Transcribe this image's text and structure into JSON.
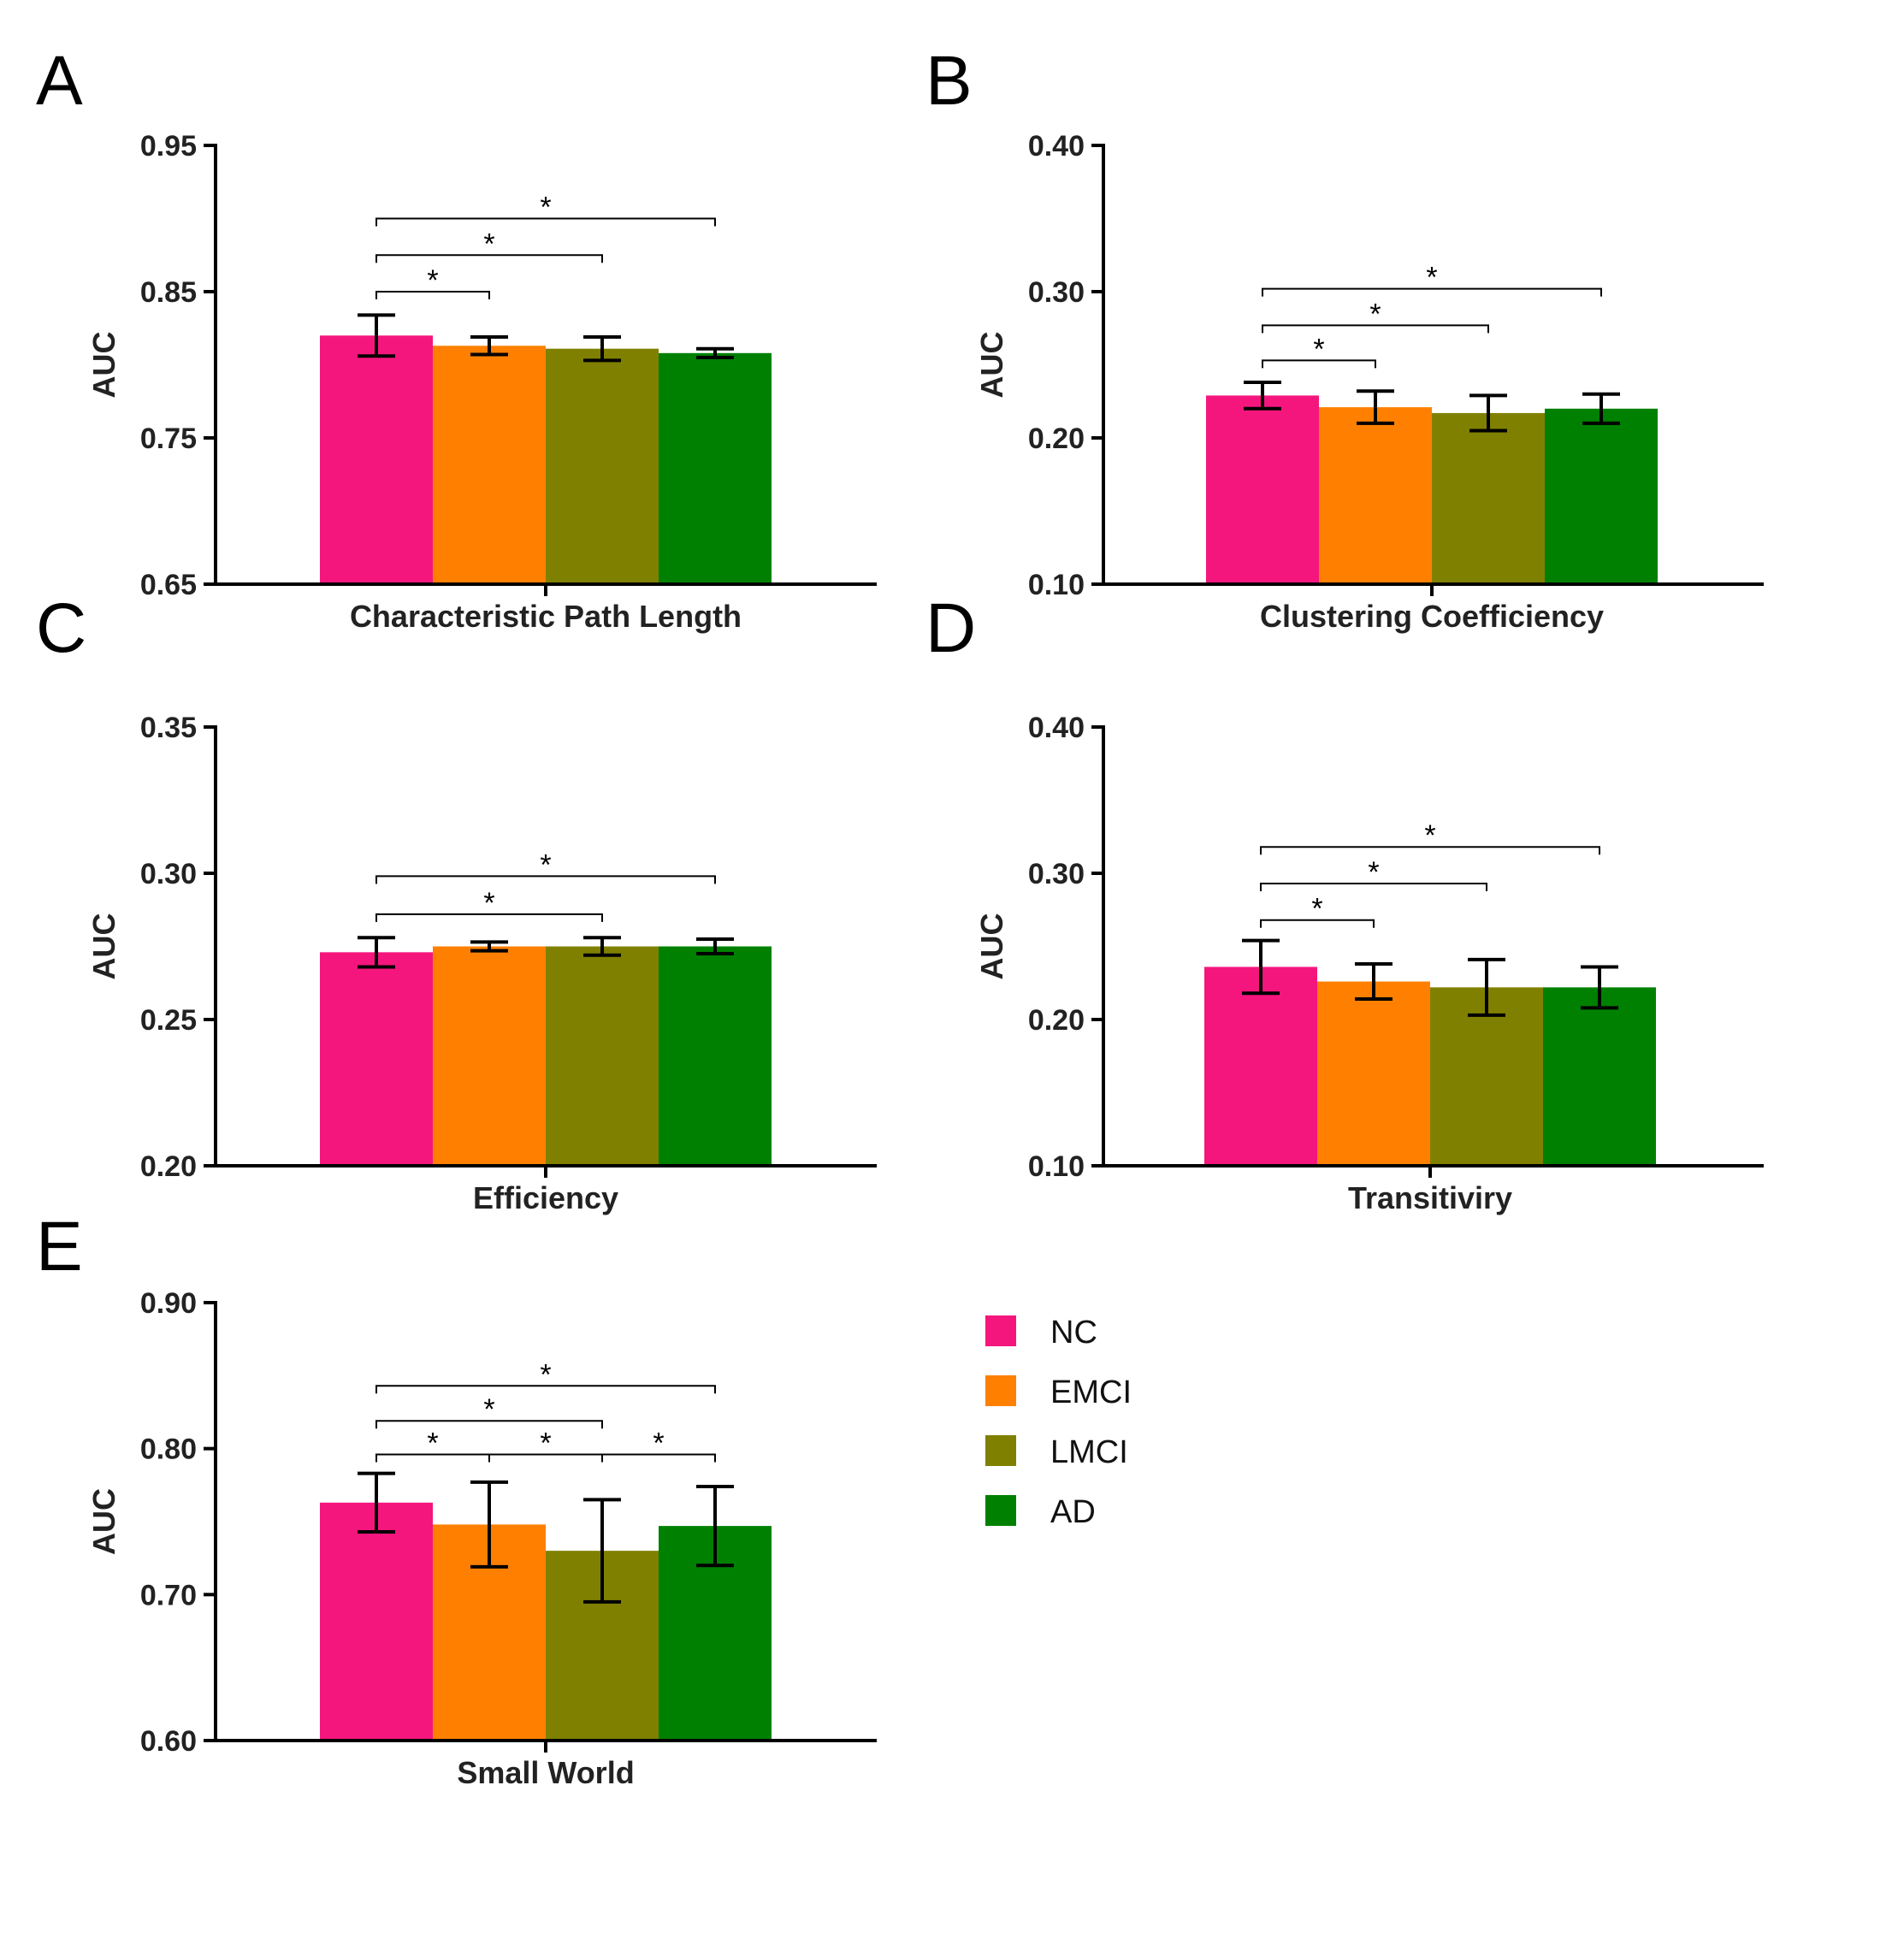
{
  "colors": {
    "NC": "#f5167d",
    "EMCI": "#ff8000",
    "LMCI": "#808000",
    "AD": "#008000"
  },
  "legend": {
    "items": [
      {
        "label": "NC",
        "color_key": "NC"
      },
      {
        "label": "EMCI",
        "color_key": "EMCI"
      },
      {
        "label": "LMCI",
        "color_key": "LMCI"
      },
      {
        "label": "AD",
        "color_key": "AD"
      }
    ]
  },
  "chart_data": [
    {
      "panel": "A",
      "type": "bar",
      "ylabel": "AUC",
      "xlabel": "Characteristic Path Length",
      "ylim": [
        0.65,
        0.95
      ],
      "yticks": [
        "0.65",
        "0.75",
        "0.85",
        "0.95"
      ],
      "groups": [
        "NC",
        "EMCI",
        "LMCI",
        "AD"
      ],
      "values": [
        0.82,
        0.813,
        0.811,
        0.808
      ],
      "errors": [
        0.014,
        0.006,
        0.008,
        0.003
      ],
      "significance": [
        {
          "from": 0,
          "to": 1,
          "label": "*",
          "level": 0.85
        },
        {
          "from": 0,
          "to": 2,
          "label": "*",
          "level": 0.875
        },
        {
          "from": 0,
          "to": 3,
          "label": "*",
          "level": 0.9
        }
      ]
    },
    {
      "panel": "B",
      "type": "bar",
      "ylabel": "AUC",
      "xlabel": "Clustering Coefficiency",
      "ylim": [
        0.1,
        0.4
      ],
      "yticks": [
        "0.10",
        "0.20",
        "0.30",
        "0.40"
      ],
      "groups": [
        "NC",
        "EMCI",
        "LMCI",
        "AD"
      ],
      "values": [
        0.229,
        0.221,
        0.217,
        0.22
      ],
      "errors": [
        0.009,
        0.011,
        0.012,
        0.01
      ],
      "significance": [
        {
          "from": 0,
          "to": 1,
          "label": "*",
          "level": 0.253
        },
        {
          "from": 0,
          "to": 2,
          "label": "*",
          "level": 0.277
        },
        {
          "from": 0,
          "to": 3,
          "label": "*",
          "level": 0.302
        }
      ]
    },
    {
      "panel": "C",
      "type": "bar",
      "ylabel": "AUC",
      "xlabel": "Efficiency",
      "ylim": [
        0.2,
        0.35
      ],
      "yticks": [
        "0.20",
        "0.25",
        "0.30",
        "0.35"
      ],
      "groups": [
        "NC",
        "EMCI",
        "LMCI",
        "AD"
      ],
      "values": [
        0.273,
        0.275,
        0.275,
        0.275
      ],
      "errors": [
        0.005,
        0.0015,
        0.003,
        0.0025
      ],
      "significance": [
        {
          "from": 0,
          "to": 2,
          "label": "*",
          "level": 0.286
        },
        {
          "from": 0,
          "to": 3,
          "label": "*",
          "level": 0.299
        }
      ]
    },
    {
      "panel": "D",
      "type": "bar",
      "ylabel": "AUC",
      "xlabel": "Transitiviry",
      "ylim": [
        0.1,
        0.4
      ],
      "yticks": [
        "0.10",
        "0.20",
        "0.30",
        "0.40"
      ],
      "groups": [
        "NC",
        "EMCI",
        "LMCI",
        "AD"
      ],
      "values": [
        0.236,
        0.226,
        0.222,
        0.222
      ],
      "errors": [
        0.018,
        0.012,
        0.019,
        0.014
      ],
      "significance": [
        {
          "from": 0,
          "to": 1,
          "label": "*",
          "level": 0.268
        },
        {
          "from": 0,
          "to": 2,
          "label": "*",
          "level": 0.293
        },
        {
          "from": 0,
          "to": 3,
          "label": "*",
          "level": 0.318
        }
      ]
    },
    {
      "panel": "E",
      "type": "bar",
      "ylabel": "AUC",
      "xlabel": "Small World",
      "ylim": [
        0.6,
        0.9
      ],
      "yticks": [
        "0.60",
        "0.70",
        "0.80",
        "0.90"
      ],
      "groups": [
        "NC",
        "EMCI",
        "LMCI",
        "AD"
      ],
      "values": [
        0.763,
        0.748,
        0.73,
        0.747
      ],
      "errors": [
        0.02,
        0.029,
        0.035,
        0.027
      ],
      "significance": [
        {
          "from": 0,
          "to": 1,
          "label": "*",
          "level": 0.796
        },
        {
          "from": 1,
          "to": 2,
          "label": "*",
          "level": 0.796
        },
        {
          "from": 2,
          "to": 3,
          "label": "*",
          "level": 0.796
        },
        {
          "from": 0,
          "to": 2,
          "label": "*",
          "level": 0.819
        },
        {
          "from": 0,
          "to": 3,
          "label": "*",
          "level": 0.843
        }
      ]
    }
  ]
}
